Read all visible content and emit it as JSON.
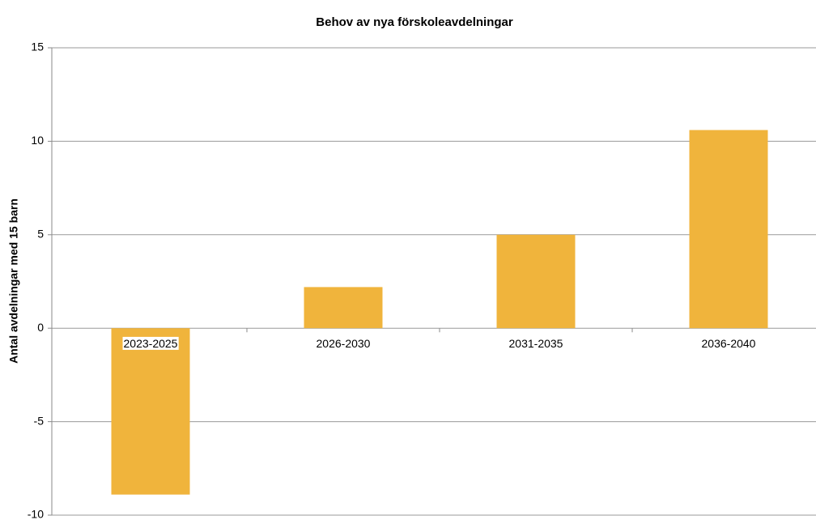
{
  "chart_data": {
    "type": "bar",
    "title": "Behov av nya förskoleavdelningar",
    "y_label": "Antal avdelningar med 15 barn",
    "categories": [
      "2023-2025",
      "2026-2030",
      "2031-2035",
      "2036-2040"
    ],
    "values": [
      -8.9,
      2.2,
      5.0,
      10.6
    ],
    "color": "#f0b43c",
    "ylim": [
      -10,
      15
    ],
    "yticks": [
      -10,
      -5,
      0,
      5,
      10,
      15
    ],
    "grid": true
  }
}
